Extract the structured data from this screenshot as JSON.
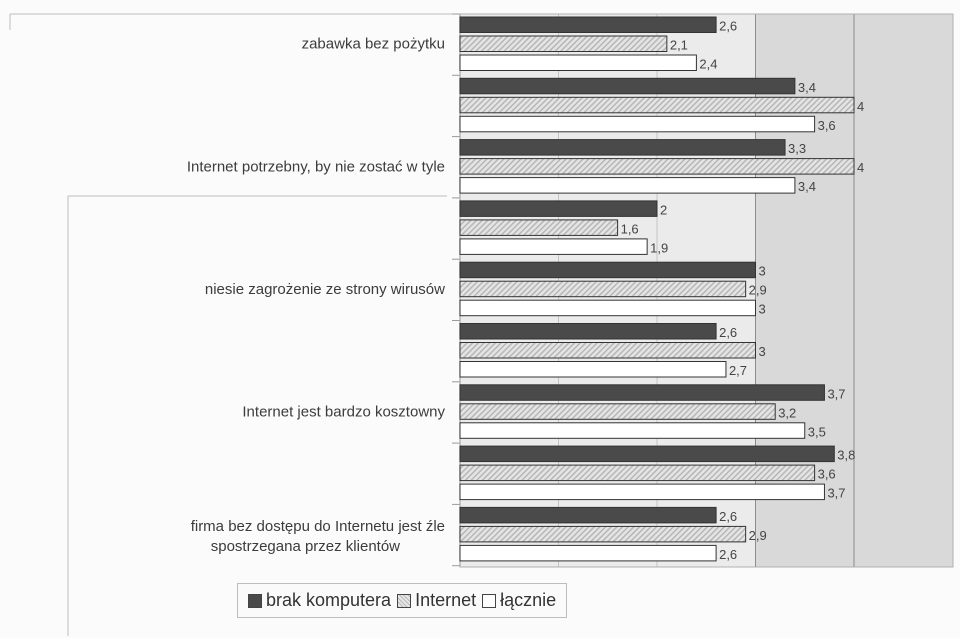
{
  "chart_data": {
    "type": "bar",
    "orientation": "horizontal",
    "title": "",
    "xlabel": "",
    "ylabel": "",
    "xlim": [
      0,
      5
    ],
    "grid": true,
    "legend_position": "bottom",
    "groups": [
      {
        "values": [
          2.6,
          2.1,
          2.4
        ],
        "labels": [
          "2,6",
          "2,1",
          "2,4"
        ]
      },
      {
        "values": [
          3.4,
          4,
          3.6
        ],
        "labels": [
          "3,4",
          "4",
          "3,6"
        ]
      },
      {
        "values": [
          3.3,
          4,
          3.4
        ],
        "labels": [
          "3,3",
          "4",
          "3,4"
        ]
      },
      {
        "values": [
          2,
          1.6,
          1.9
        ],
        "labels": [
          "2",
          "1,6",
          "1,9"
        ]
      },
      {
        "values": [
          3,
          2.9,
          3
        ],
        "labels": [
          "3",
          "2,9",
          "3"
        ]
      },
      {
        "values": [
          2.6,
          3,
          2.7
        ],
        "labels": [
          "2,6",
          "3",
          "2,7"
        ]
      },
      {
        "values": [
          3.7,
          3.2,
          3.5
        ],
        "labels": [
          "3,7",
          "3,2",
          "3,5"
        ]
      },
      {
        "values": [
          3.8,
          3.6,
          3.7
        ],
        "labels": [
          "3,8",
          "3,6",
          "3,7"
        ]
      },
      {
        "values": [
          2.6,
          2.9,
          2.6
        ],
        "labels": [
          "2,6",
          "2,9",
          "2,6"
        ]
      }
    ],
    "category_labels": [
      {
        "group": 0,
        "lines": [
          "zabawka bez pożytku"
        ]
      },
      {
        "group": 2,
        "lines": [
          "Internet potrzebny, by nie zostać w tyle"
        ]
      },
      {
        "group": 4,
        "lines": [
          "niesie zagrożenie ze strony wirusów"
        ]
      },
      {
        "group": 6,
        "lines": [
          "Internet jest bardzo kosztowny"
        ]
      },
      {
        "group": 8,
        "lines": [
          "firma bez dostępu do Internetu jest źle",
          "spostrzegana przez klientów"
        ]
      }
    ],
    "series": [
      {
        "name": "brak komputera",
        "color": "#4a4a4a"
      },
      {
        "name": "Internet",
        "color": "#d7d7d7"
      },
      {
        "name": "łącznie",
        "color": "#ffffff"
      }
    ]
  },
  "legend": {
    "items": [
      "brak komputera",
      "Internet",
      "łącznie"
    ]
  }
}
